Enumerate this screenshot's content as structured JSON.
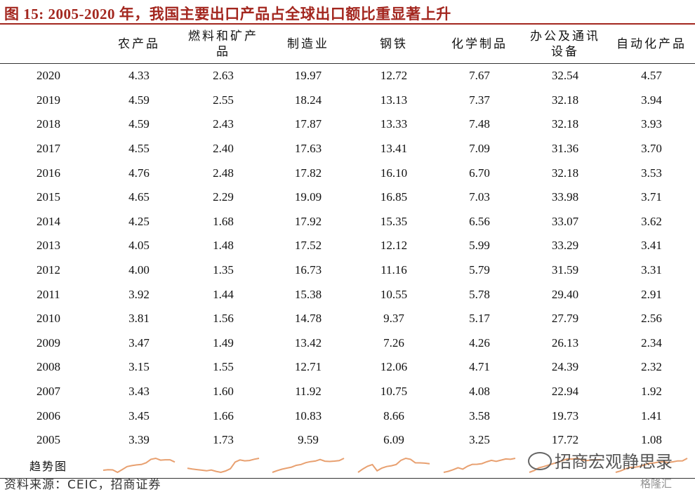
{
  "title": "图 15:  2005-2020 年，我国主要出口产品占全球出口额比重显著上升",
  "columns": [
    "",
    "农产品",
    "燃料和矿产品",
    "制造业",
    "钢铁",
    "化学制品",
    "办公及通讯设备",
    "自动化产品"
  ],
  "column_lines": [
    [
      ""
    ],
    [
      "农产品"
    ],
    [
      "燃料和矿产",
      "品"
    ],
    [
      "制造业"
    ],
    [
      "钢铁"
    ],
    [
      "化学制品"
    ],
    [
      "办公及通讯",
      "设备"
    ],
    [
      "自动化产品"
    ]
  ],
  "rows": [
    [
      "2020",
      "4.33",
      "2.63",
      "19.97",
      "12.72",
      "7.67",
      "32.54",
      "4.57"
    ],
    [
      "2019",
      "4.59",
      "2.55",
      "18.24",
      "13.13",
      "7.37",
      "32.18",
      "3.94"
    ],
    [
      "2018",
      "4.59",
      "2.43",
      "17.87",
      "13.33",
      "7.48",
      "32.18",
      "3.93"
    ],
    [
      "2017",
      "4.55",
      "2.40",
      "17.63",
      "13.41",
      "7.09",
      "31.36",
      "3.70"
    ],
    [
      "2016",
      "4.76",
      "2.48",
      "17.82",
      "16.10",
      "6.70",
      "32.18",
      "3.53"
    ],
    [
      "2015",
      "4.65",
      "2.29",
      "19.09",
      "16.85",
      "7.03",
      "33.98",
      "3.71"
    ],
    [
      "2014",
      "4.25",
      "1.68",
      "17.92",
      "15.35",
      "6.56",
      "33.07",
      "3.62"
    ],
    [
      "2013",
      "4.05",
      "1.48",
      "17.52",
      "12.12",
      "5.99",
      "33.29",
      "3.41"
    ],
    [
      "2012",
      "4.00",
      "1.35",
      "16.73",
      "11.16",
      "5.79",
      "31.59",
      "3.31"
    ],
    [
      "2011",
      "3.92",
      "1.44",
      "15.38",
      "10.55",
      "5.78",
      "29.40",
      "2.91"
    ],
    [
      "2010",
      "3.81",
      "1.56",
      "14.78",
      "9.37",
      "5.17",
      "27.79",
      "2.56"
    ],
    [
      "2009",
      "3.47",
      "1.49",
      "13.42",
      "7.26",
      "4.26",
      "26.13",
      "2.34"
    ],
    [
      "2008",
      "3.15",
      "1.55",
      "12.71",
      "12.06",
      "4.71",
      "24.39",
      "2.32"
    ],
    [
      "2007",
      "3.43",
      "1.60",
      "11.92",
      "10.75",
      "4.08",
      "22.94",
      "1.92"
    ],
    [
      "2006",
      "3.45",
      "1.66",
      "10.83",
      "8.66",
      "3.58",
      "19.73",
      "1.41"
    ],
    [
      "2005",
      "3.39",
      "1.73",
      "9.59",
      "6.09",
      "3.25",
      "17.72",
      "1.08"
    ]
  ],
  "trend_label": "趋势图",
  "sparkline_color": "#e8a070",
  "source": "资料来源：CEIC，招商证券",
  "watermark": "招商宏观静思录",
  "logo_text": "格隆汇"
}
